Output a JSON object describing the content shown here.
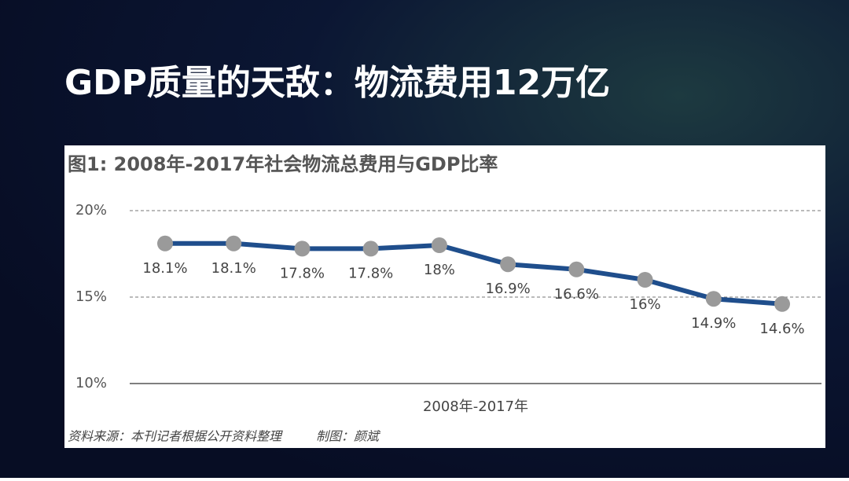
{
  "slide_title": "GDP质量的天敌：物流费用12万亿",
  "chart_data": {
    "type": "line",
    "title": "图1: 2008年-2017年社会物流总费用与GDP比率",
    "xlabel": "2008年-2017年",
    "source": "资料来源：本刊记者根据公开资料整理",
    "author": "制图：颜斌",
    "values": [
      18.1,
      18.1,
      17.8,
      17.8,
      18,
      16.9,
      16.6,
      16,
      14.9,
      14.6
    ],
    "value_labels": [
      "18.1%",
      "18.1%",
      "17.8%",
      "17.8%",
      "18%",
      "16.9%",
      "16.6%",
      "16%",
      "14.9%",
      "14.6%"
    ],
    "color": "#1f4e8c",
    "marker_color": "#9a9a9a",
    "ylim": [
      10,
      20
    ],
    "yticks": [
      {
        "value": 10,
        "label": "10%"
      },
      {
        "value": 15,
        "label": "15%"
      },
      {
        "value": 20,
        "label": "20%"
      }
    ],
    "grid": true
  }
}
